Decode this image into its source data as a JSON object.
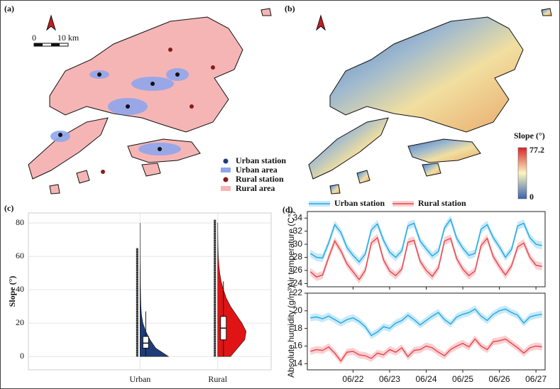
{
  "maps": {
    "panel_a": {
      "label": "(a)",
      "scale_start": "0",
      "scale_end": "10 km",
      "legend": [
        "Urban station",
        "Urban area",
        "Rural station",
        "Rural area"
      ]
    },
    "panel_b": {
      "label": "(b)",
      "colorbar": {
        "title": "Slope (°)",
        "ticks": [
          77.2,
          0
        ]
      }
    }
  },
  "panels": {
    "c": "(c)",
    "d": "(d)"
  },
  "chart_data": [
    {
      "type": "violin",
      "ylabel": "Slope (°)",
      "categories": [
        "Urban",
        "Rural"
      ],
      "ylim": [
        -8,
        86
      ],
      "yticks": [
        0,
        20,
        40,
        60,
        80
      ],
      "grid": true,
      "density_y": [
        0,
        5,
        10,
        15,
        20,
        25,
        30,
        35,
        40,
        45,
        50,
        55,
        60,
        65,
        70,
        75,
        80
      ],
      "groups": [
        {
          "color": "#1f3c78",
          "density": [
            1,
            0.55,
            0.35,
            0.2,
            0.1,
            0.05,
            0.03,
            0.02,
            0.015,
            0.01,
            0.008,
            0.005,
            0.003,
            0.001,
            0,
            0,
            0
          ],
          "whisker_low": 0,
          "q1": 5,
          "median": 8,
          "q3": 12,
          "whisker_high": 27,
          "max": 65
        },
        {
          "color": "#e01414",
          "density": [
            0.45,
            0.7,
            0.95,
            1,
            0.85,
            0.65,
            0.45,
            0.3,
            0.2,
            0.12,
            0.07,
            0.04,
            0.02,
            0.01,
            0.005,
            0.002,
            0.001
          ],
          "whisker_low": 0,
          "q1": 10,
          "median": 17,
          "q3": 24,
          "whisker_high": 45,
          "max": 82
        }
      ]
    },
    {
      "type": "line",
      "ylabel": "Air temperature (C°)",
      "legend": "top",
      "x": [
        -28,
        -24,
        -20,
        -16,
        -12,
        -8,
        -4,
        0,
        4,
        8,
        12,
        16,
        20,
        24,
        28,
        32,
        36,
        40,
        44,
        48,
        52,
        56,
        60,
        64,
        68,
        72,
        76,
        80,
        84,
        88,
        92,
        96,
        100,
        104,
        108,
        112,
        116,
        120,
        124
      ],
      "xlim": [
        -30,
        126
      ],
      "xticks": [
        0,
        24,
        48,
        72,
        96,
        120
      ],
      "ylim": [
        23.5,
        35
      ],
      "yticks": [
        24,
        26,
        28,
        30,
        32,
        34
      ],
      "series": [
        {
          "name": "Urban station",
          "color": "#1ea7e4",
          "band": 0.6,
          "values": [
            28.6,
            28.0,
            27.9,
            30.2,
            33.0,
            31.8,
            29.5,
            28.3,
            27.3,
            28.5,
            32.2,
            33.1,
            30.6,
            28.8,
            28.0,
            29.0,
            32.8,
            33.2,
            30.5,
            29.3,
            28.2,
            28.9,
            32.5,
            33.8,
            30.9,
            29.4,
            28.3,
            28.6,
            32.3,
            33.0,
            31.0,
            29.6,
            28.0,
            29.2,
            32.8,
            33.2,
            31.0,
            30.0,
            29.8
          ]
        },
        {
          "name": "Rural station",
          "color": "#e8434a",
          "band": 0.6,
          "values": [
            25.8,
            25.0,
            25.3,
            28.0,
            30.5,
            29.0,
            27.0,
            25.8,
            24.6,
            26.0,
            30.2,
            31.0,
            27.6,
            25.9,
            25.2,
            26.2,
            30.3,
            30.6,
            27.4,
            26.0,
            25.1,
            26.4,
            30.5,
            30.9,
            27.8,
            26.2,
            25.2,
            25.9,
            29.8,
            30.9,
            28.1,
            26.6,
            25.3,
            26.7,
            29.6,
            30.2,
            28.0,
            26.8,
            26.6
          ]
        }
      ]
    },
    {
      "type": "line",
      "ylabel": "Absolute humidity (g/m³)",
      "x": [
        -28,
        -24,
        -20,
        -16,
        -12,
        -8,
        -4,
        0,
        4,
        8,
        12,
        16,
        20,
        24,
        28,
        32,
        36,
        40,
        44,
        48,
        52,
        56,
        60,
        64,
        68,
        72,
        76,
        80,
        84,
        88,
        92,
        96,
        100,
        104,
        108,
        112,
        116,
        120,
        124
      ],
      "xlim": [
        -30,
        126
      ],
      "xticks": [
        {
          "value": 0,
          "label": "06/22"
        },
        {
          "value": 24,
          "label": "06/23"
        },
        {
          "value": 48,
          "label": "06/24"
        },
        {
          "value": 72,
          "label": "06/25"
        },
        {
          "value": 96,
          "label": "06/26"
        },
        {
          "value": 120,
          "label": "06/27"
        }
      ],
      "ylim": [
        13.3,
        22
      ],
      "yticks": [
        14,
        16,
        18,
        20,
        22
      ],
      "series": [
        {
          "color": "#1ea7e4",
          "band": 0.4,
          "values": [
            19.2,
            19.3,
            19.1,
            19.4,
            19.0,
            18.6,
            19.0,
            19.2,
            18.8,
            18.2,
            17.2,
            17.6,
            18.2,
            18.0,
            18.6,
            18.9,
            19.5,
            19.0,
            18.4,
            18.9,
            19.4,
            19.8,
            19.0,
            18.5,
            19.3,
            19.6,
            19.8,
            20.2,
            19.4,
            18.9,
            19.6,
            20.0,
            20.2,
            19.8,
            19.5,
            18.6,
            19.3,
            19.5,
            19.6
          ]
        },
        {
          "color": "#e8434a",
          "band": 0.4,
          "values": [
            15.4,
            15.6,
            15.5,
            15.9,
            15.2,
            14.3,
            15.3,
            15.4,
            15.0,
            14.9,
            14.6,
            15.2,
            15.0,
            15.6,
            15.3,
            15.8,
            14.8,
            15.5,
            15.6,
            16.0,
            15.8,
            15.3,
            14.9,
            15.6,
            16.0,
            16.3,
            15.9,
            16.8,
            16.0,
            15.6,
            16.5,
            16.6,
            16.8,
            16.3,
            15.8,
            15.2,
            15.8,
            16.0,
            15.9
          ]
        }
      ]
    }
  ]
}
